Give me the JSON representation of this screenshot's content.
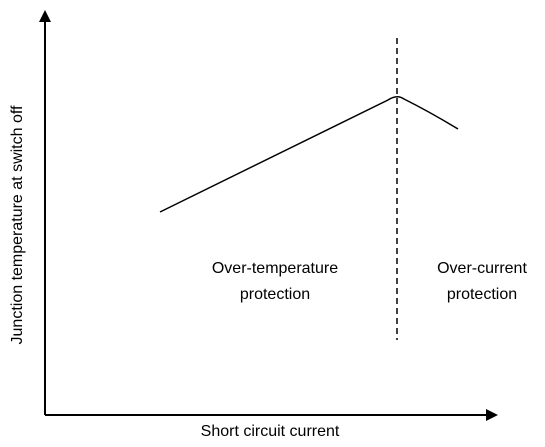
{
  "axes": {
    "x_label": "Short circuit current",
    "y_label": "Junction temperature at switch off"
  },
  "regions": [
    {
      "lines": [
        "Over-temperature",
        "protection"
      ]
    },
    {
      "lines": [
        "Over-current",
        "protection"
      ]
    }
  ]
}
